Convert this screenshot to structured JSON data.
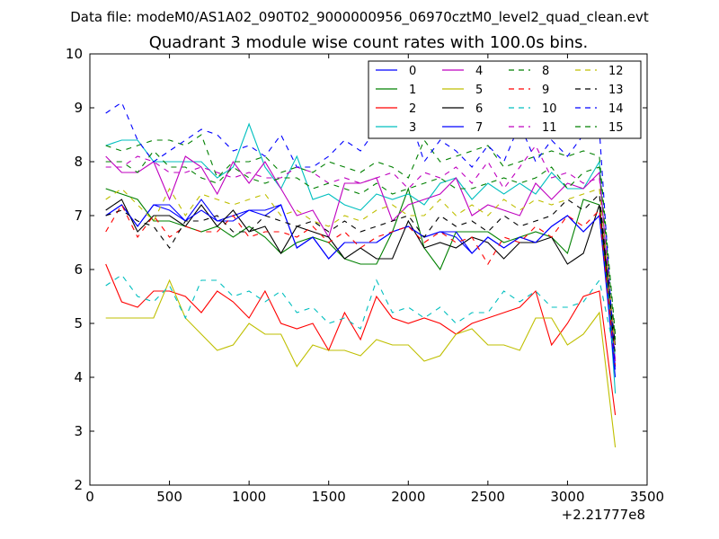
{
  "header_text": "Data file: modeM0/AS1A02_090T02_9000000956_06970cztM0_level2_quad_clean.evt",
  "chart_data": {
    "type": "line",
    "title": "Quadrant 3 module wise count rates with 100.0s bins.",
    "xlabel": "",
    "ylabel": "",
    "x_offset_label": "+2.21777e8",
    "xlim": [
      0,
      3500
    ],
    "ylim": [
      2,
      10
    ],
    "x_ticks": [
      0,
      500,
      1000,
      1500,
      2000,
      2500,
      3000,
      3500
    ],
    "y_ticks": [
      2,
      3,
      4,
      5,
      6,
      7,
      8,
      9,
      10
    ],
    "grid": false,
    "legend_position": "top-right",
    "x": [
      100,
      200,
      300,
      400,
      500,
      600,
      700,
      800,
      900,
      1000,
      1100,
      1200,
      1300,
      1400,
      1500,
      1600,
      1700,
      1800,
      1900,
      2000,
      2100,
      2200,
      2300,
      2400,
      2500,
      2600,
      2700,
      2800,
      2900,
      3000,
      3100,
      3200,
      3300
    ],
    "series": [
      {
        "name": "0",
        "color": "#0000ff",
        "dash": "solid",
        "values": [
          7.0,
          7.2,
          6.8,
          7.2,
          7.2,
          6.9,
          7.3,
          6.9,
          7.0,
          7.1,
          7.1,
          7.2,
          6.4,
          6.6,
          6.2,
          6.5,
          6.5,
          6.5,
          6.7,
          6.8,
          6.6,
          6.7,
          6.6,
          6.3,
          6.6,
          6.4,
          6.6,
          6.5,
          6.8,
          7.0,
          6.7,
          7.0,
          4.2
        ]
      },
      {
        "name": "1",
        "color": "#008000",
        "dash": "solid",
        "values": [
          7.5,
          7.4,
          7.3,
          6.9,
          6.9,
          6.8,
          6.7,
          6.8,
          6.6,
          6.8,
          6.6,
          6.3,
          6.5,
          6.6,
          6.5,
          6.2,
          6.1,
          6.1,
          6.7,
          7.5,
          6.4,
          6.0,
          6.7,
          6.7,
          6.7,
          6.5,
          6.6,
          6.7,
          6.6,
          6.3,
          7.3,
          7.2,
          4.3
        ]
      },
      {
        "name": "2",
        "color": "#ff0000",
        "dash": "solid",
        "values": [
          6.1,
          5.4,
          5.3,
          5.6,
          5.6,
          5.5,
          5.2,
          5.6,
          5.4,
          5.1,
          5.6,
          5.0,
          4.9,
          5.0,
          4.5,
          5.2,
          4.7,
          5.5,
          5.1,
          5.0,
          5.1,
          5.0,
          4.8,
          5.0,
          5.1,
          5.2,
          5.3,
          5.6,
          4.6,
          5.0,
          5.5,
          5.6,
          3.3
        ]
      },
      {
        "name": "3",
        "color": "#00bfbf",
        "dash": "solid",
        "values": [
          8.3,
          8.4,
          8.4,
          8.0,
          8.0,
          8.0,
          8.0,
          7.7,
          7.9,
          8.7,
          7.9,
          7.5,
          8.1,
          7.3,
          7.4,
          7.2,
          7.1,
          7.4,
          7.3,
          7.4,
          7.2,
          7.6,
          7.7,
          7.3,
          7.6,
          7.4,
          7.6,
          7.4,
          7.8,
          7.5,
          7.5,
          8.0,
          3.7
        ]
      },
      {
        "name": "4",
        "color": "#bf00bf",
        "dash": "solid",
        "values": [
          8.1,
          7.8,
          7.8,
          8.0,
          7.3,
          8.1,
          7.9,
          7.4,
          8.0,
          7.6,
          8.0,
          7.5,
          7.0,
          7.1,
          6.6,
          7.6,
          7.6,
          7.7,
          6.9,
          7.2,
          7.3,
          7.4,
          7.7,
          7.0,
          7.2,
          7.1,
          7.0,
          7.6,
          7.3,
          7.6,
          7.5,
          7.8,
          4.3
        ]
      },
      {
        "name": "5",
        "color": "#bfbf00",
        "dash": "solid",
        "values": [
          5.1,
          5.1,
          5.1,
          5.1,
          5.8,
          5.1,
          4.8,
          4.5,
          4.6,
          5.0,
          4.8,
          4.8,
          4.2,
          4.6,
          4.5,
          4.5,
          4.4,
          4.7,
          4.6,
          4.6,
          4.3,
          4.4,
          4.8,
          4.9,
          4.6,
          4.6,
          4.5,
          5.1,
          5.1,
          4.6,
          4.8,
          5.2,
          2.7
        ]
      },
      {
        "name": "6",
        "color": "#000000",
        "dash": "solid",
        "values": [
          7.1,
          7.3,
          6.7,
          7.0,
          7.0,
          6.8,
          7.2,
          6.8,
          7.1,
          6.7,
          6.8,
          6.3,
          6.8,
          6.7,
          6.6,
          6.2,
          6.4,
          6.2,
          6.2,
          6.9,
          6.4,
          6.5,
          6.4,
          6.6,
          6.5,
          6.2,
          6.5,
          6.5,
          6.6,
          6.1,
          6.3,
          7.2,
          4.6
        ]
      },
      {
        "name": "7",
        "color": "#0000ff",
        "dash": "solid",
        "values": [
          7.0,
          7.2,
          6.8,
          7.2,
          7.1,
          6.9,
          7.1,
          6.9,
          6.9,
          7.1,
          7.0,
          7.2,
          6.4,
          6.6,
          6.2,
          6.5,
          6.5,
          6.5,
          6.7,
          6.8,
          6.6,
          6.7,
          6.7,
          6.3,
          6.6,
          6.4,
          6.6,
          6.5,
          6.8,
          7.0,
          6.7,
          7.0,
          4.0
        ]
      },
      {
        "name": "8",
        "color": "#008000",
        "dash": "dashed",
        "values": [
          8.3,
          8.2,
          8.3,
          8.4,
          8.4,
          8.3,
          8.5,
          7.7,
          8.0,
          8.0,
          8.1,
          7.8,
          7.9,
          7.8,
          8.0,
          7.9,
          7.8,
          8.0,
          7.9,
          7.7,
          8.4,
          8.0,
          8.1,
          8.2,
          8.3,
          7.9,
          8.0,
          8.1,
          8.2,
          8.1,
          8.2,
          8.1,
          4.8
        ]
      },
      {
        "name": "9",
        "color": "#ff0000",
        "dash": "dashed",
        "values": [
          6.7,
          7.2,
          6.6,
          7.0,
          6.6,
          6.8,
          6.7,
          6.7,
          7.0,
          6.6,
          6.7,
          6.7,
          6.6,
          6.8,
          6.5,
          6.7,
          6.4,
          6.6,
          6.7,
          6.8,
          6.5,
          6.7,
          6.5,
          6.6,
          6.1,
          6.6,
          6.5,
          6.8,
          6.6,
          7.0,
          6.8,
          7.1,
          4.2
        ]
      },
      {
        "name": "10",
        "color": "#00bfbf",
        "dash": "dashed",
        "values": [
          5.7,
          5.9,
          5.5,
          5.4,
          5.7,
          5.1,
          5.8,
          5.8,
          5.5,
          5.6,
          5.4,
          5.6,
          5.2,
          5.3,
          5.0,
          5.1,
          4.9,
          5.8,
          5.2,
          5.3,
          5.1,
          5.3,
          5.0,
          5.2,
          5.2,
          5.6,
          5.4,
          5.6,
          5.3,
          5.3,
          5.4,
          5.8,
          4.4
        ]
      },
      {
        "name": "11",
        "color": "#bf00bf",
        "dash": "dashed",
        "values": [
          7.9,
          7.9,
          8.1,
          8.0,
          7.8,
          7.8,
          7.9,
          7.8,
          7.7,
          7.8,
          7.7,
          7.7,
          7.9,
          7.8,
          7.6,
          7.7,
          7.6,
          7.7,
          7.8,
          7.5,
          7.8,
          7.7,
          7.9,
          7.6,
          8.0,
          7.5,
          7.9,
          8.3,
          7.7,
          7.8,
          7.6,
          7.7,
          4.5
        ]
      },
      {
        "name": "12",
        "color": "#bfbf00",
        "dash": "dashed",
        "values": [
          7.3,
          7.5,
          7.2,
          6.9,
          7.5,
          7.0,
          7.4,
          7.3,
          7.2,
          7.3,
          7.4,
          7.0,
          7.1,
          6.9,
          6.8,
          7.0,
          6.9,
          7.1,
          7.2,
          7.0,
          7.0,
          7.3,
          7.0,
          7.2,
          7.0,
          7.3,
          7.1,
          7.3,
          7.2,
          7.3,
          7.4,
          7.5,
          4.5
        ]
      },
      {
        "name": "13",
        "color": "#000000",
        "dash": "dashed",
        "values": [
          7.0,
          7.1,
          6.9,
          6.8,
          6.4,
          6.9,
          6.9,
          7.0,
          6.7,
          6.7,
          7.0,
          6.9,
          6.8,
          6.9,
          6.7,
          6.9,
          6.7,
          6.8,
          6.9,
          7.0,
          6.6,
          7.0,
          6.8,
          6.9,
          6.7,
          7.0,
          6.8,
          6.9,
          7.0,
          7.3,
          7.1,
          7.4,
          4.4
        ]
      },
      {
        "name": "14",
        "color": "#0000ff",
        "dash": "dashed",
        "values": [
          8.9,
          9.1,
          8.4,
          8.0,
          8.2,
          8.4,
          8.6,
          8.5,
          8.2,
          8.3,
          8.1,
          8.5,
          7.9,
          7.9,
          8.1,
          8.4,
          8.2,
          8.6,
          8.8,
          8.9,
          8.0,
          8.4,
          8.2,
          7.9,
          8.3,
          8.0,
          8.7,
          8.0,
          8.4,
          8.1,
          8.5,
          8.6,
          4.1
        ]
      },
      {
        "name": "15",
        "color": "#008000",
        "dash": "dashed",
        "values": [
          8.0,
          8.0,
          7.8,
          8.2,
          7.9,
          7.9,
          7.7,
          7.6,
          7.9,
          7.7,
          7.6,
          7.7,
          7.7,
          7.5,
          7.6,
          7.5,
          7.4,
          7.6,
          7.4,
          7.5,
          7.6,
          7.7,
          7.5,
          7.5,
          7.6,
          7.7,
          7.6,
          7.7,
          7.9,
          7.5,
          7.8,
          7.9,
          4.7
        ]
      }
    ]
  }
}
